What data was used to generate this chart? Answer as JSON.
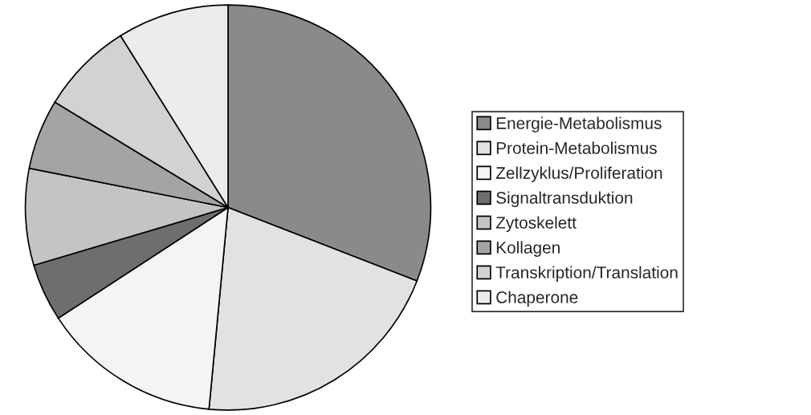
{
  "chart_data": {
    "type": "pie",
    "categories": [
      "Energie-Metabolismus",
      "Protein-Metabolismus",
      "Zellzyklus/Proliferation",
      "Signaltransduktion",
      "Zytoskelett",
      "Kollagen",
      "Transkription/Translation",
      "Chaperone"
    ],
    "values": [
      30.9,
      20.6,
      14.3,
      4.6,
      7.7,
      5.6,
      7.4,
      8.9
    ],
    "colors": [
      "#8a8a8a",
      "#e2e2e2",
      "#f4f4f4",
      "#6e6e6e",
      "#c4c4c4",
      "#a4a4a4",
      "#d2d2d2",
      "#ececec"
    ],
    "legend": "right"
  }
}
